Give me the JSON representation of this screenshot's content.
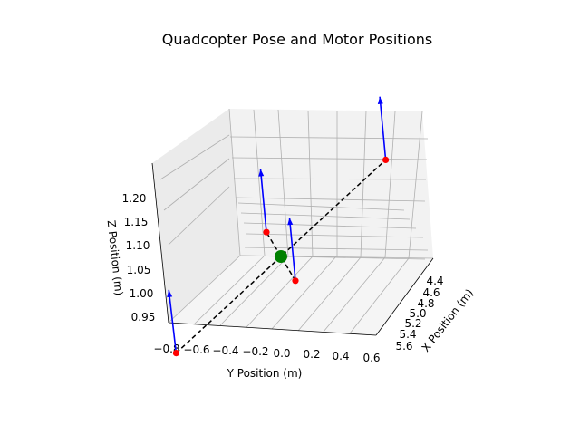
{
  "title": "Quadcopter Pose and Motor Positions",
  "chart_data": {
    "type": "scatter",
    "title": "Quadcopter Pose and Motor Positions",
    "projection": "3d",
    "xlabel": "X Position (m)",
    "ylabel": "Y Position (m)",
    "zlabel": "Z Position (m)",
    "x_ticks": [
      "4.4",
      "4.6",
      "4.8",
      "5.0",
      "5.2",
      "5.4",
      "5.6"
    ],
    "y_ticks": [
      "−0.8",
      "−0.6",
      "−0.4",
      "−0.2",
      "0.0",
      "0.2",
      "0.4",
      "0.6"
    ],
    "z_ticks": [
      "0.95",
      "1.00",
      "1.05",
      "1.10",
      "1.15",
      "1.20"
    ],
    "xlim": [
      4.3,
      5.7
    ],
    "ylim": [
      -0.8,
      0.6
    ],
    "zlim": [
      0.93,
      1.22
    ],
    "grid": true,
    "center": {
      "x": 5.0,
      "y": 0.0,
      "z": 1.08,
      "color": "#008000"
    },
    "motors": [
      {
        "x": 5.5,
        "y": -0.2,
        "z": 1.0
      },
      {
        "x": 5.1,
        "y": 0.2,
        "z": 1.06
      },
      {
        "x": 4.9,
        "y": -0.2,
        "z": 1.1
      },
      {
        "x": 4.5,
        "y": 0.2,
        "z": 1.16
      }
    ],
    "thrust_vectors": [
      {
        "dx": 0.0,
        "dy": -0.05,
        "dz": 0.09
      },
      {
        "dx": 0.0,
        "dy": -0.04,
        "dz": 0.09
      },
      {
        "dx": 0.0,
        "dy": -0.04,
        "dz": 0.09
      },
      {
        "dx": 0.0,
        "dy": -0.04,
        "dz": 0.09
      }
    ],
    "motor_color": "#ff0000",
    "arrow_color": "#0000ff",
    "frame_line_color": "#000000",
    "frame_line_style": "dashed"
  }
}
